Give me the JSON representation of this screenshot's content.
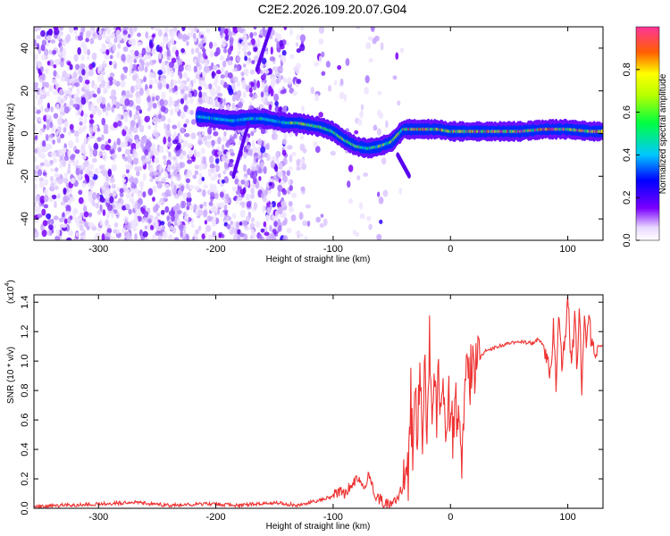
{
  "title": "C2E2.2026.109.20.07.G04",
  "chart_data": [
    {
      "type": "heatmap",
      "name": "spectrogram",
      "xlabel": "Height of straight line (km)",
      "ylabel": "Frequency (Hz)",
      "xlim": [
        -355,
        130
      ],
      "ylim": [
        -50,
        50
      ],
      "xticks": [
        -300,
        -200,
        -100,
        0,
        100
      ],
      "xtick_labels": [
        "-300",
        "-200",
        "-100",
        "0",
        "100"
      ],
      "yticks": [
        -40,
        -20,
        0,
        20,
        40
      ],
      "ytick_labels": [
        "-40",
        "-20",
        "0",
        "20",
        "40"
      ],
      "ridge": {
        "x": [
          -215,
          -200,
          -185,
          -170,
          -160,
          -150,
          -140,
          -130,
          -120,
          -110,
          -100,
          -90,
          -80,
          -70,
          -60,
          -50,
          -45,
          -40,
          -30,
          -20,
          -10,
          0,
          20,
          40,
          60,
          80,
          100,
          120,
          130
        ],
        "y": [
          8,
          7,
          6,
          7,
          7,
          6,
          5,
          5,
          4,
          3,
          1,
          -3,
          -6,
          -7,
          -6,
          -4,
          -1,
          2,
          2,
          2,
          2,
          1,
          1,
          1,
          1,
          2,
          2,
          1,
          1
        ]
      },
      "colorbar": {
        "label": "Normalized spectral amplitude",
        "range": [
          0,
          1
        ],
        "ticks": [
          0.0,
          0.2,
          0.4,
          0.6,
          0.8
        ],
        "tick_labels": [
          "0.0",
          "0.2",
          "0.4",
          "0.6",
          "0.8"
        ]
      }
    },
    {
      "type": "line",
      "name": "snr",
      "xlabel": "Height of straight line (km)",
      "ylabel": "SNR (10 * v/v)",
      "multiplier_label": "(x10",
      "multiplier_exp": "4",
      "multiplier_close": ")",
      "xlim": [
        -355,
        130
      ],
      "ylim": [
        0,
        1.45
      ],
      "xticks": [
        -300,
        -200,
        -100,
        0,
        100
      ],
      "xtick_labels": [
        "-300",
        "-200",
        "-100",
        "0",
        "100"
      ],
      "yticks": [
        0.0,
        0.2,
        0.4,
        0.6,
        0.8,
        1.0,
        1.2,
        1.4
      ],
      "ytick_labels": [
        "0.0",
        "0.2",
        "0.4",
        "0.6",
        "0.8",
        "1.0",
        "1.2",
        "1.4"
      ],
      "series": [
        {
          "name": "SNR",
          "color": "#ee3333",
          "x": [
            -355,
            -330,
            -300,
            -270,
            -240,
            -210,
            -180,
            -150,
            -130,
            -120,
            -110,
            -100,
            -95,
            -90,
            -85,
            -80,
            -75,
            -70,
            -65,
            -60,
            -55,
            -50,
            -45,
            -40,
            -38,
            -36,
            -34,
            -32,
            -30,
            -28,
            -26,
            -24,
            -22,
            -20,
            -18,
            -16,
            -14,
            -12,
            -10,
            -8,
            -6,
            -4,
            -2,
            0,
            2,
            4,
            6,
            8,
            10,
            12,
            15,
            20,
            25,
            30,
            40,
            50,
            60,
            70,
            75,
            80,
            85,
            88,
            90,
            92,
            95,
            98,
            100,
            103,
            106,
            108,
            110,
            112,
            114,
            116,
            118,
            120,
            125,
            130
          ],
          "y": [
            0.01,
            0.02,
            0.03,
            0.04,
            0.02,
            0.03,
            0.02,
            0.04,
            0.02,
            0.04,
            0.06,
            0.08,
            0.12,
            0.1,
            0.16,
            0.2,
            0.14,
            0.22,
            0.1,
            0.06,
            0.03,
            0.02,
            0.08,
            0.15,
            0.45,
            0.2,
            0.8,
            0.35,
            0.95,
            0.4,
            1.1,
            0.5,
            0.9,
            0.6,
            1.2,
            0.55,
            1.0,
            0.6,
            0.95,
            0.7,
            0.85,
            0.65,
            0.75,
            0.7,
            0.5,
            0.85,
            0.6,
            0.8,
            0.25,
            0.8,
            0.85,
            0.95,
            1.02,
            1.07,
            1.1,
            1.12,
            1.13,
            1.12,
            1.15,
            1.1,
            0.9,
            1.25,
            0.85,
            1.3,
            0.95,
            1.2,
            1.45,
            0.95,
            1.3,
            0.9,
            1.42,
            0.75,
            1.3,
            1.15,
            1.35,
            1.1,
            1.1,
            1.1
          ]
        }
      ]
    }
  ]
}
